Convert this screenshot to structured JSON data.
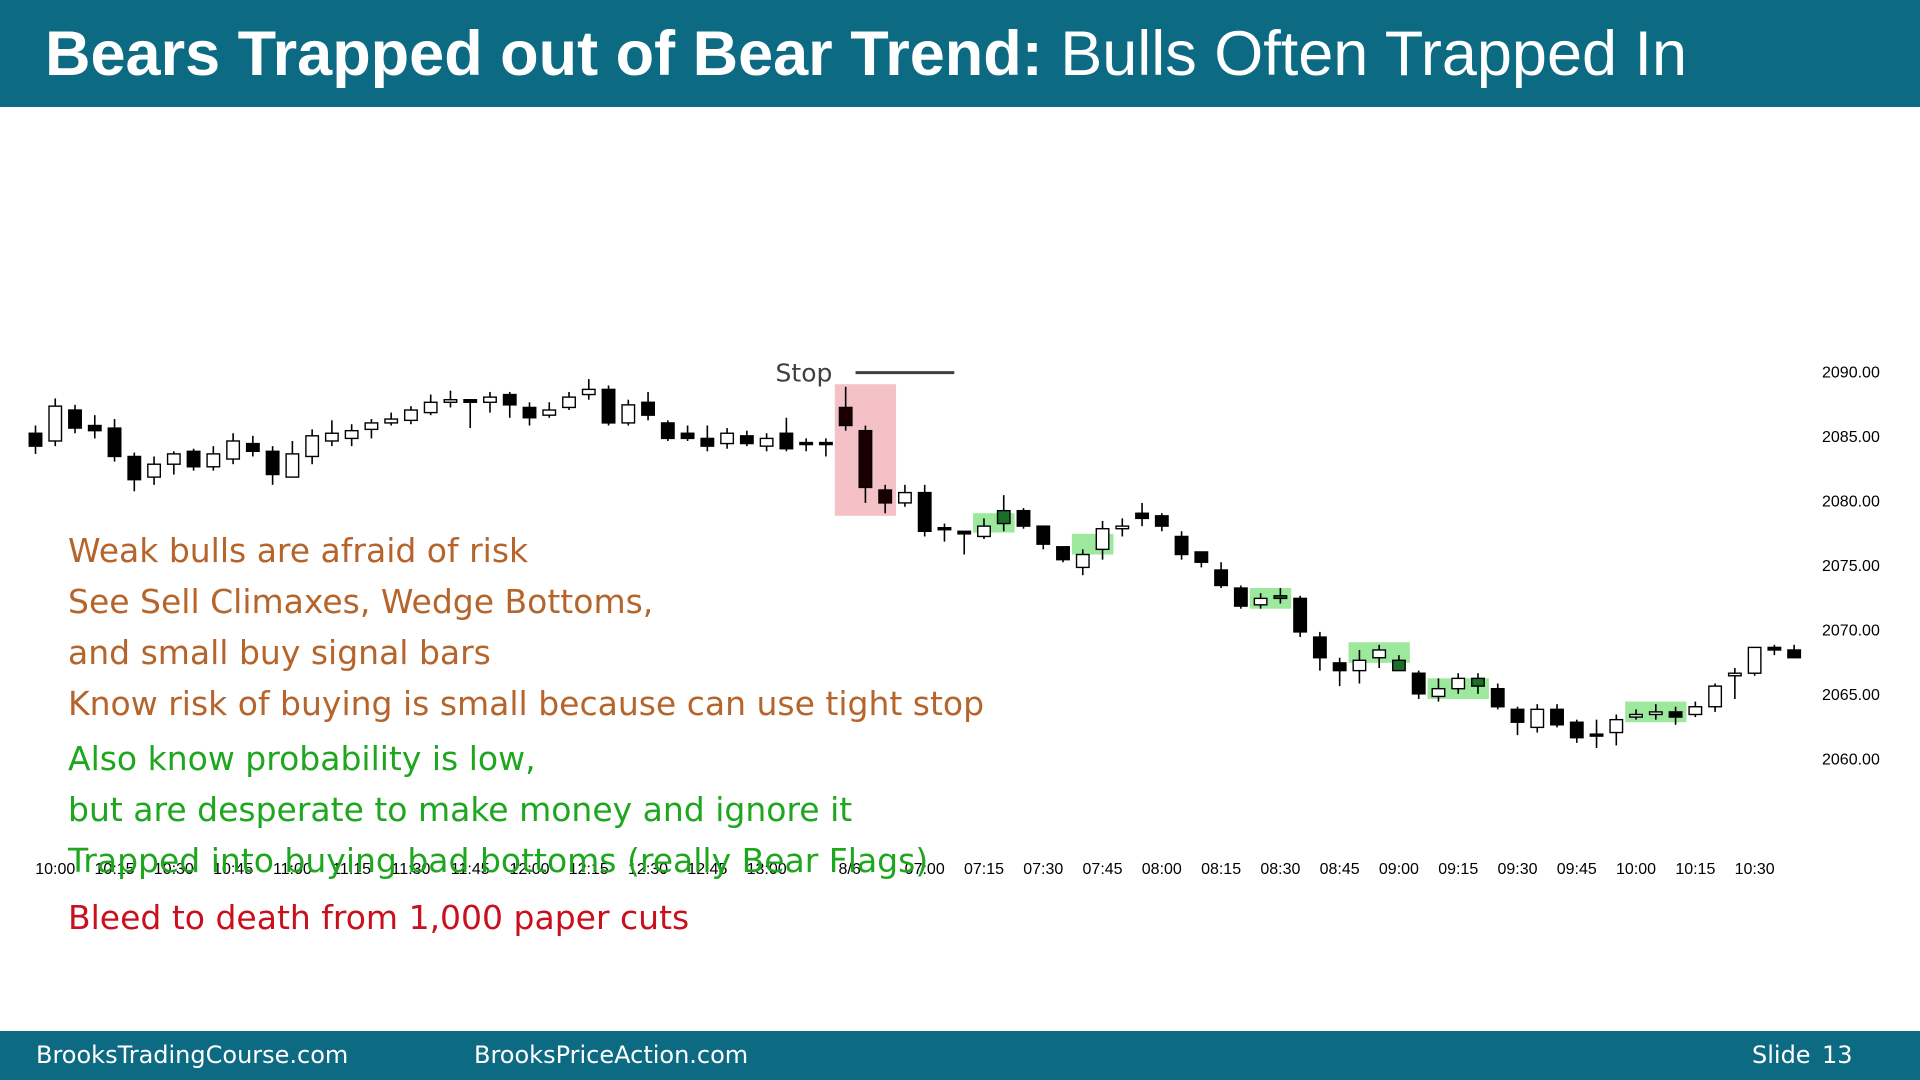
{
  "header": {
    "title_bold": "Bears Trapped out of Bear Trend:",
    "title_normal": " Bulls Often Trapped In"
  },
  "chart_data": {
    "type": "candlestick",
    "y_ticks": [
      "2090.00",
      "2085.00",
      "2080.00",
      "2075.00",
      "2070.00",
      "2065.00",
      "2060.00"
    ],
    "y_tick_values": [
      2090,
      2085,
      2080,
      2075,
      2070,
      2065,
      2060
    ],
    "ylim": [
      2057.5,
      2098.9
    ],
    "x_ticks": [
      {
        "label": "10:00",
        "bar": 1
      },
      {
        "label": "10:15",
        "bar": 4
      },
      {
        "label": "10:30",
        "bar": 7
      },
      {
        "label": "10:45",
        "bar": 10
      },
      {
        "label": "11:00",
        "bar": 13
      },
      {
        "label": "11:15",
        "bar": 16
      },
      {
        "label": "11:30",
        "bar": 19
      },
      {
        "label": "11:45",
        "bar": 22
      },
      {
        "label": "12:00",
        "bar": 25
      },
      {
        "label": "12:15",
        "bar": 28
      },
      {
        "label": "12:30",
        "bar": 31
      },
      {
        "label": "12:45",
        "bar": 34
      },
      {
        "label": "13:00",
        "bar": 37
      },
      {
        "label": "8/6",
        "bar": 41.2
      },
      {
        "label": "07:00",
        "bar": 45
      },
      {
        "label": "07:15",
        "bar": 48
      },
      {
        "label": "07:30",
        "bar": 51
      },
      {
        "label": "07:45",
        "bar": 54
      },
      {
        "label": "08:00",
        "bar": 57
      },
      {
        "label": "08:15",
        "bar": 60
      },
      {
        "label": "08:30",
        "bar": 63
      },
      {
        "label": "08:45",
        "bar": 66
      },
      {
        "label": "09:00",
        "bar": 69
      },
      {
        "label": "09:15",
        "bar": 72
      },
      {
        "label": "09:30",
        "bar": 75
      },
      {
        "label": "09:45",
        "bar": 78
      },
      {
        "label": "10:00",
        "bar": 81
      },
      {
        "label": "10:15",
        "bar": 84
      },
      {
        "label": "10:30",
        "bar": 87
      }
    ],
    "bars": [
      [
        2085.2,
        2084.2,
        2085.8,
        2083.6
      ],
      [
        2084.6,
        2087.3,
        2087.9,
        2084.2
      ],
      [
        2087.0,
        2085.6,
        2087.4,
        2085.2
      ],
      [
        2085.8,
        2085.4,
        2086.6,
        2084.8
      ],
      [
        2085.6,
        2083.4,
        2086.3,
        2083.0
      ],
      [
        2083.4,
        2081.6,
        2083.7,
        2080.7
      ],
      [
        2081.8,
        2082.8,
        2083.4,
        2081.2
      ],
      [
        2082.8,
        2083.6,
        2083.8,
        2082.0
      ],
      [
        2083.8,
        2082.6,
        2084.0,
        2082.3
      ],
      [
        2082.6,
        2083.6,
        2084.2,
        2082.3
      ],
      [
        2083.2,
        2084.6,
        2085.2,
        2082.8
      ],
      [
        2084.4,
        2083.8,
        2085.0,
        2083.4
      ],
      [
        2083.8,
        2082.0,
        2084.2,
        2081.2
      ],
      [
        2081.8,
        2083.6,
        2084.6,
        2081.8
      ],
      [
        2083.4,
        2085.0,
        2085.5,
        2082.8
      ],
      [
        2084.6,
        2085.2,
        2086.2,
        2084.2
      ],
      [
        2084.8,
        2085.4,
        2085.9,
        2084.2
      ],
      [
        2085.5,
        2086.0,
        2086.3,
        2084.8
      ],
      [
        2086.0,
        2086.3,
        2086.8,
        2085.8
      ],
      [
        2086.2,
        2087.0,
        2087.3,
        2085.9
      ],
      [
        2086.8,
        2087.6,
        2088.2,
        2086.6
      ],
      [
        2087.6,
        2087.8,
        2088.5,
        2087.2
      ],
      [
        2087.8,
        2087.6,
        2087.8,
        2085.6
      ],
      [
        2087.6,
        2088.0,
        2088.4,
        2086.8
      ],
      [
        2088.2,
        2087.4,
        2088.4,
        2086.4
      ],
      [
        2087.2,
        2086.4,
        2087.6,
        2085.8
      ],
      [
        2086.6,
        2087.0,
        2087.6,
        2086.4
      ],
      [
        2087.2,
        2088.0,
        2088.4,
        2087.0
      ],
      [
        2088.2,
        2088.6,
        2089.4,
        2087.8
      ],
      [
        2088.6,
        2086.0,
        2088.9,
        2085.8
      ],
      [
        2086.0,
        2087.4,
        2087.8,
        2085.8
      ],
      [
        2087.6,
        2086.6,
        2088.4,
        2086.2
      ],
      [
        2086.0,
        2084.8,
        2086.2,
        2084.6
      ],
      [
        2085.2,
        2084.8,
        2085.8,
        2084.6
      ],
      [
        2084.8,
        2084.2,
        2085.8,
        2083.8
      ],
      [
        2084.4,
        2085.2,
        2085.6,
        2084.0
      ],
      [
        2085.0,
        2084.4,
        2085.4,
        2084.2
      ],
      [
        2084.2,
        2084.8,
        2085.2,
        2083.8
      ],
      [
        2085.2,
        2084.0,
        2086.4,
        2083.8
      ],
      [
        2084.4,
        2084.4,
        2084.8,
        2083.8
      ],
      [
        2084.4,
        2084.4,
        2084.8,
        2083.4
      ],
      [
        2087.2,
        2085.8,
        2088.8,
        2085.4
      ],
      [
        2085.4,
        2081.0,
        2085.8,
        2079.8
      ],
      [
        2080.8,
        2079.8,
        2081.2,
        2079.0
      ],
      [
        2079.8,
        2080.6,
        2081.2,
        2079.5
      ],
      [
        2080.6,
        2077.6,
        2081.2,
        2077.2
      ],
      [
        2077.8,
        2077.8,
        2078.2,
        2076.8
      ],
      [
        2077.6,
        2077.4,
        2077.6,
        2075.8
      ],
      [
        2077.2,
        2078.0,
        2078.6,
        2077.0
      ],
      [
        2078.2,
        2079.2,
        2080.4,
        2077.6
      ],
      [
        2079.2,
        2078.0,
        2079.4,
        2077.8
      ],
      [
        2078.0,
        2076.6,
        2078.0,
        2076.2
      ],
      [
        2076.4,
        2075.4,
        2076.4,
        2075.2
      ],
      [
        2074.8,
        2075.8,
        2076.2,
        2074.2
      ],
      [
        2076.2,
        2077.8,
        2078.4,
        2075.4
      ],
      [
        2077.8,
        2078.0,
        2078.6,
        2077.2
      ],
      [
        2078.6,
        2079.0,
        2079.8,
        2078.0
      ],
      [
        2078.8,
        2078.0,
        2079.0,
        2077.6
      ],
      [
        2077.2,
        2075.8,
        2077.6,
        2075.4
      ],
      [
        2076.0,
        2075.2,
        2076.0,
        2074.8
      ],
      [
        2074.6,
        2073.4,
        2075.2,
        2073.2
      ],
      [
        2073.2,
        2071.8,
        2073.4,
        2071.6
      ],
      [
        2071.9,
        2072.4,
        2072.8,
        2071.6
      ],
      [
        2072.6,
        2072.4,
        2073.2,
        2072.0
      ],
      [
        2072.4,
        2069.8,
        2072.6,
        2069.4
      ],
      [
        2069.4,
        2067.8,
        2069.8,
        2066.8
      ],
      [
        2067.4,
        2066.8,
        2067.8,
        2065.6
      ],
      [
        2066.8,
        2067.6,
        2068.4,
        2065.8
      ],
      [
        2067.8,
        2068.4,
        2068.8,
        2067.0
      ],
      [
        2067.6,
        2066.8,
        2068.0,
        2066.8
      ],
      [
        2066.6,
        2065.0,
        2066.8,
        2064.6
      ],
      [
        2064.8,
        2065.4,
        2066.2,
        2064.4
      ],
      [
        2065.4,
        2066.2,
        2066.6,
        2065.0
      ],
      [
        2066.2,
        2065.6,
        2066.6,
        2065.0
      ],
      [
        2065.4,
        2064.0,
        2065.8,
        2063.8
      ],
      [
        2063.8,
        2062.8,
        2064.0,
        2061.8
      ],
      [
        2062.4,
        2063.8,
        2064.2,
        2062.0
      ],
      [
        2063.8,
        2062.6,
        2064.2,
        2062.4
      ],
      [
        2062.8,
        2061.6,
        2063.0,
        2061.2
      ],
      [
        2061.8,
        2061.8,
        2063.0,
        2060.8
      ],
      [
        2062.0,
        2063.0,
        2063.4,
        2061.0
      ],
      [
        2063.2,
        2063.4,
        2063.8,
        2063.0
      ],
      [
        2063.4,
        2063.6,
        2064.2,
        2063.0
      ],
      [
        2063.6,
        2063.2,
        2064.0,
        2062.6
      ],
      [
        2063.4,
        2064.0,
        2064.4,
        2063.2
      ],
      [
        2064.0,
        2065.6,
        2065.8,
        2063.6
      ],
      [
        2066.4,
        2066.6,
        2067.0,
        2064.6
      ],
      [
        2066.6,
        2068.6,
        2068.6,
        2066.4
      ],
      [
        2068.6,
        2068.4,
        2068.8,
        2068.0
      ],
      [
        2068.4,
        2067.8,
        2068.8,
        2067.8
      ]
    ],
    "bull_bars": [
      1,
      6,
      7,
      9,
      10,
      13,
      14,
      15,
      16,
      17,
      18,
      19,
      20,
      21,
      23,
      26,
      27,
      28,
      30,
      35,
      37,
      44,
      48,
      49,
      53,
      54,
      55,
      62,
      67,
      68,
      71,
      72,
      76,
      80,
      81,
      82,
      84,
      85,
      86,
      87
    ],
    "highlights": [
      {
        "type": "trap",
        "color": "#f4c2c6",
        "bar_from": 41,
        "bar_to": 43,
        "y_top": 2089.0,
        "y_bottom": 2078.8
      },
      {
        "type": "bull-signal",
        "color": "#9ce89c",
        "bar_from": 48,
        "bar_to": 49,
        "y_top": 2079.0,
        "y_bottom": 2077.5
      },
      {
        "type": "bull-signal",
        "color": "#9ce89c",
        "bar_from": 53,
        "bar_to": 54,
        "y_top": 2077.4,
        "y_bottom": 2075.8
      },
      {
        "type": "bull-signal",
        "color": "#9ce89c",
        "bar_from": 62,
        "bar_to": 63,
        "y_top": 2073.2,
        "y_bottom": 2071.6
      },
      {
        "type": "bull-signal",
        "color": "#9ce89c",
        "bar_from": 67,
        "bar_to": 69,
        "y_top": 2069.0,
        "y_bottom": 2067.4
      },
      {
        "type": "bull-signal",
        "color": "#9ce89c",
        "bar_from": 71,
        "bar_to": 73,
        "y_top": 2066.2,
        "y_bottom": 2064.6
      },
      {
        "type": "bull-signal",
        "color": "#9ce89c",
        "bar_from": 81,
        "bar_to": 83,
        "y_top": 2064.4,
        "y_bottom": 2062.8
      }
    ],
    "highlight_bodies": [
      {
        "bar": 49,
        "color": "#1b6e2a"
      },
      {
        "bar": 63,
        "color": "#1b6e2a"
      },
      {
        "bar": 69,
        "color": "#1b6e2a"
      },
      {
        "bar": 73,
        "color": "#1b6e2a"
      }
    ],
    "stop": {
      "label": "Stop",
      "level": 2089.9,
      "bar_from": 41.5,
      "bar_to": 46.5
    }
  },
  "notes": [
    {
      "text": "Weak bulls are afraid of risk",
      "color": "#b5652b"
    },
    {
      "text": "See Sell Climaxes, Wedge Bottoms,",
      "color": "#b5652b"
    },
    {
      "text": "and small buy signal bars",
      "color": "#b5652b"
    },
    {
      "text": "Know risk of buying is small because can use tight stop",
      "color": "#b5652b"
    },
    {
      "text": "Also know probability is low,",
      "color": "#1fa61f"
    },
    {
      "text": "but are desperate to make money and ignore it",
      "color": "#1fa61f"
    },
    {
      "text": "Trapped into buying bad bottoms (really Bear Flags)",
      "color": "#1fa61f"
    },
    {
      "text": "Bleed to death from 1,000 paper cuts",
      "color": "#c8101e"
    }
  ],
  "footer": {
    "left": "BrooksTradingCourse.com",
    "center": "BrooksPriceAction.com",
    "slide_label": "Slide",
    "slide_number": "13"
  }
}
